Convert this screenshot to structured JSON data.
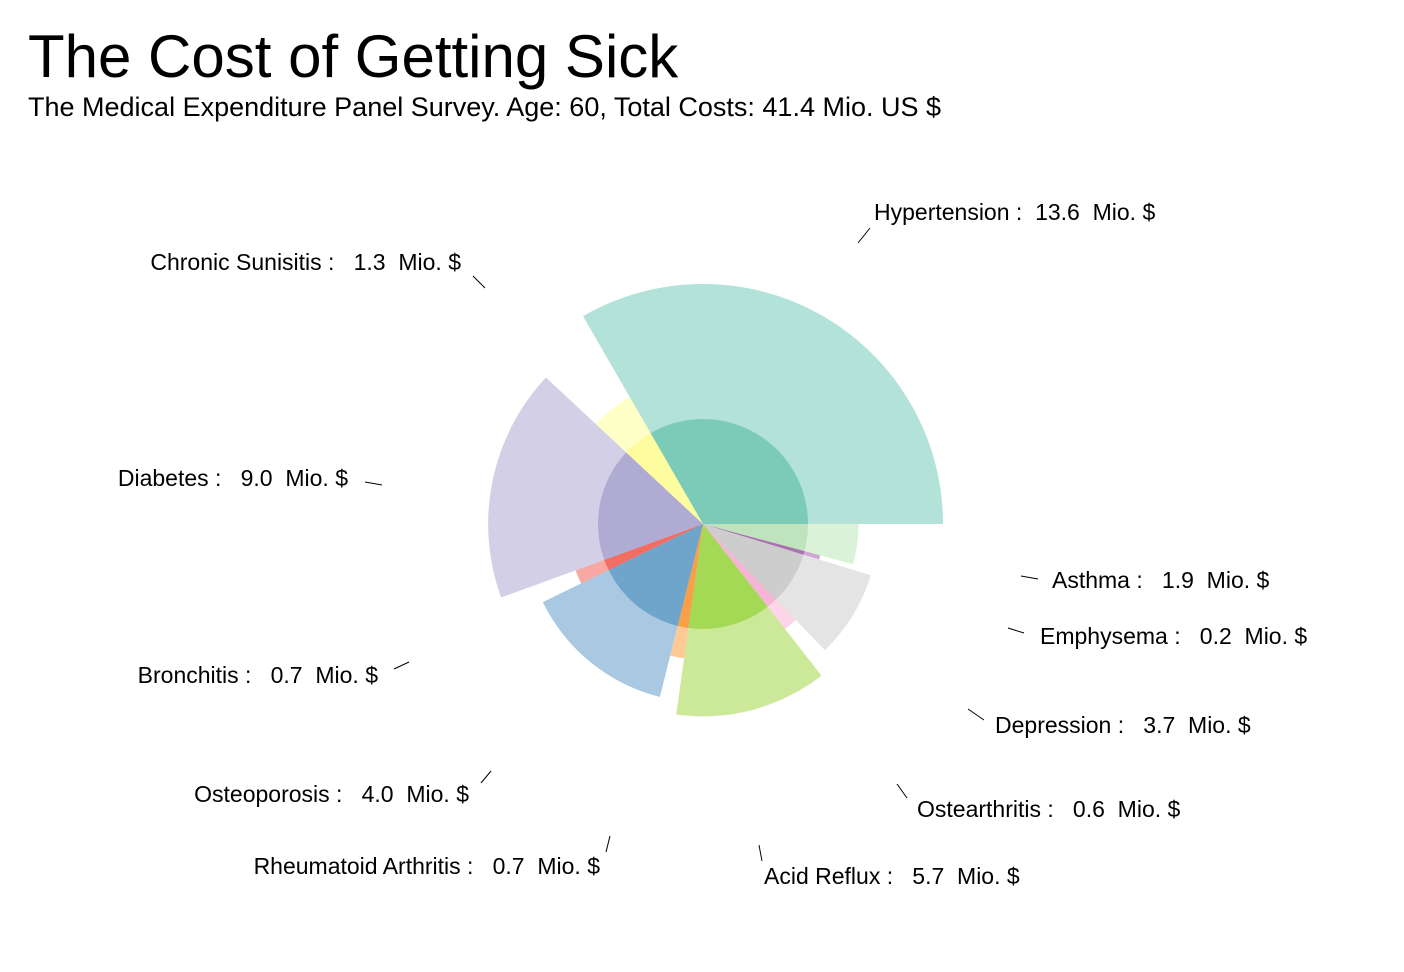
{
  "chart_data": {
    "type": "pie",
    "title": "The Cost of Getting Sick",
    "subtitle": "The Medical Expenditure Panel Survey. Age: 60, Total Costs:  41.4 Mio. US $",
    "unit": "Mio. $",
    "slices": [
      {
        "name": "Hypertension",
        "value": 13.6,
        "outer_color": "#b3e2d8",
        "inner_color": "#7ccbb9",
        "label": "Hypertension :  13.6  Mio. $"
      },
      {
        "name": "Asthma",
        "value": 1.9,
        "outer_color": "#daf2d8",
        "inner_color": "#bfe3bd",
        "label": "Asthma :   1.9  Mio. $"
      },
      {
        "name": "Emphysema",
        "value": 0.2,
        "outer_color": "#cfa6d4",
        "inner_color": "#a873b0",
        "label": "Emphysema :   0.2  Mio. $"
      },
      {
        "name": "Depression",
        "value": 3.7,
        "outer_color": "#e4e4e4",
        "inner_color": "#cdcdcd",
        "label": "Depression :   3.7  Mio. $"
      },
      {
        "name": "Ostearthritis",
        "value": 0.6,
        "outer_color": "#fcd5e8",
        "inner_color": "#f6b5d5",
        "label": "Ostearthritis :   0.6  Mio. $"
      },
      {
        "name": "Acid Reflux",
        "value": 5.7,
        "outer_color": "#cce99a",
        "inner_color": "#a3d955",
        "label": "Acid Reflux :   5.7  Mio. $"
      },
      {
        "name": "Rheumatoid Arthritis",
        "value": 0.7,
        "outer_color": "#fdc995",
        "inner_color": "#f7a04a",
        "label": "Rheumatoid Arthritis :   0.7  Mio. $"
      },
      {
        "name": "Osteoporosis",
        "value": 4.0,
        "outer_color": "#a9c8e1",
        "inner_color": "#6fa4cb",
        "label": "Osteoporosis :   4.0  Mio. $"
      },
      {
        "name": "Bronchitis",
        "value": 0.7,
        "outer_color": "#f8a8a2",
        "inner_color": "#f26d62",
        "label": "Bronchitis :   0.7  Mio. $"
      },
      {
        "name": "Diabetes",
        "value": 9.0,
        "outer_color": "#d2cfe6",
        "inner_color": "#b0abd2",
        "label": "Diabetes :   9.0  Mio. $"
      },
      {
        "name": "Chronic Sunisitis",
        "value": 1.3,
        "outer_color": "#ffffc8",
        "inner_color": "#fdfc9f",
        "label": "Chronic Sunisitis :   1.3  Mio. $"
      }
    ]
  }
}
